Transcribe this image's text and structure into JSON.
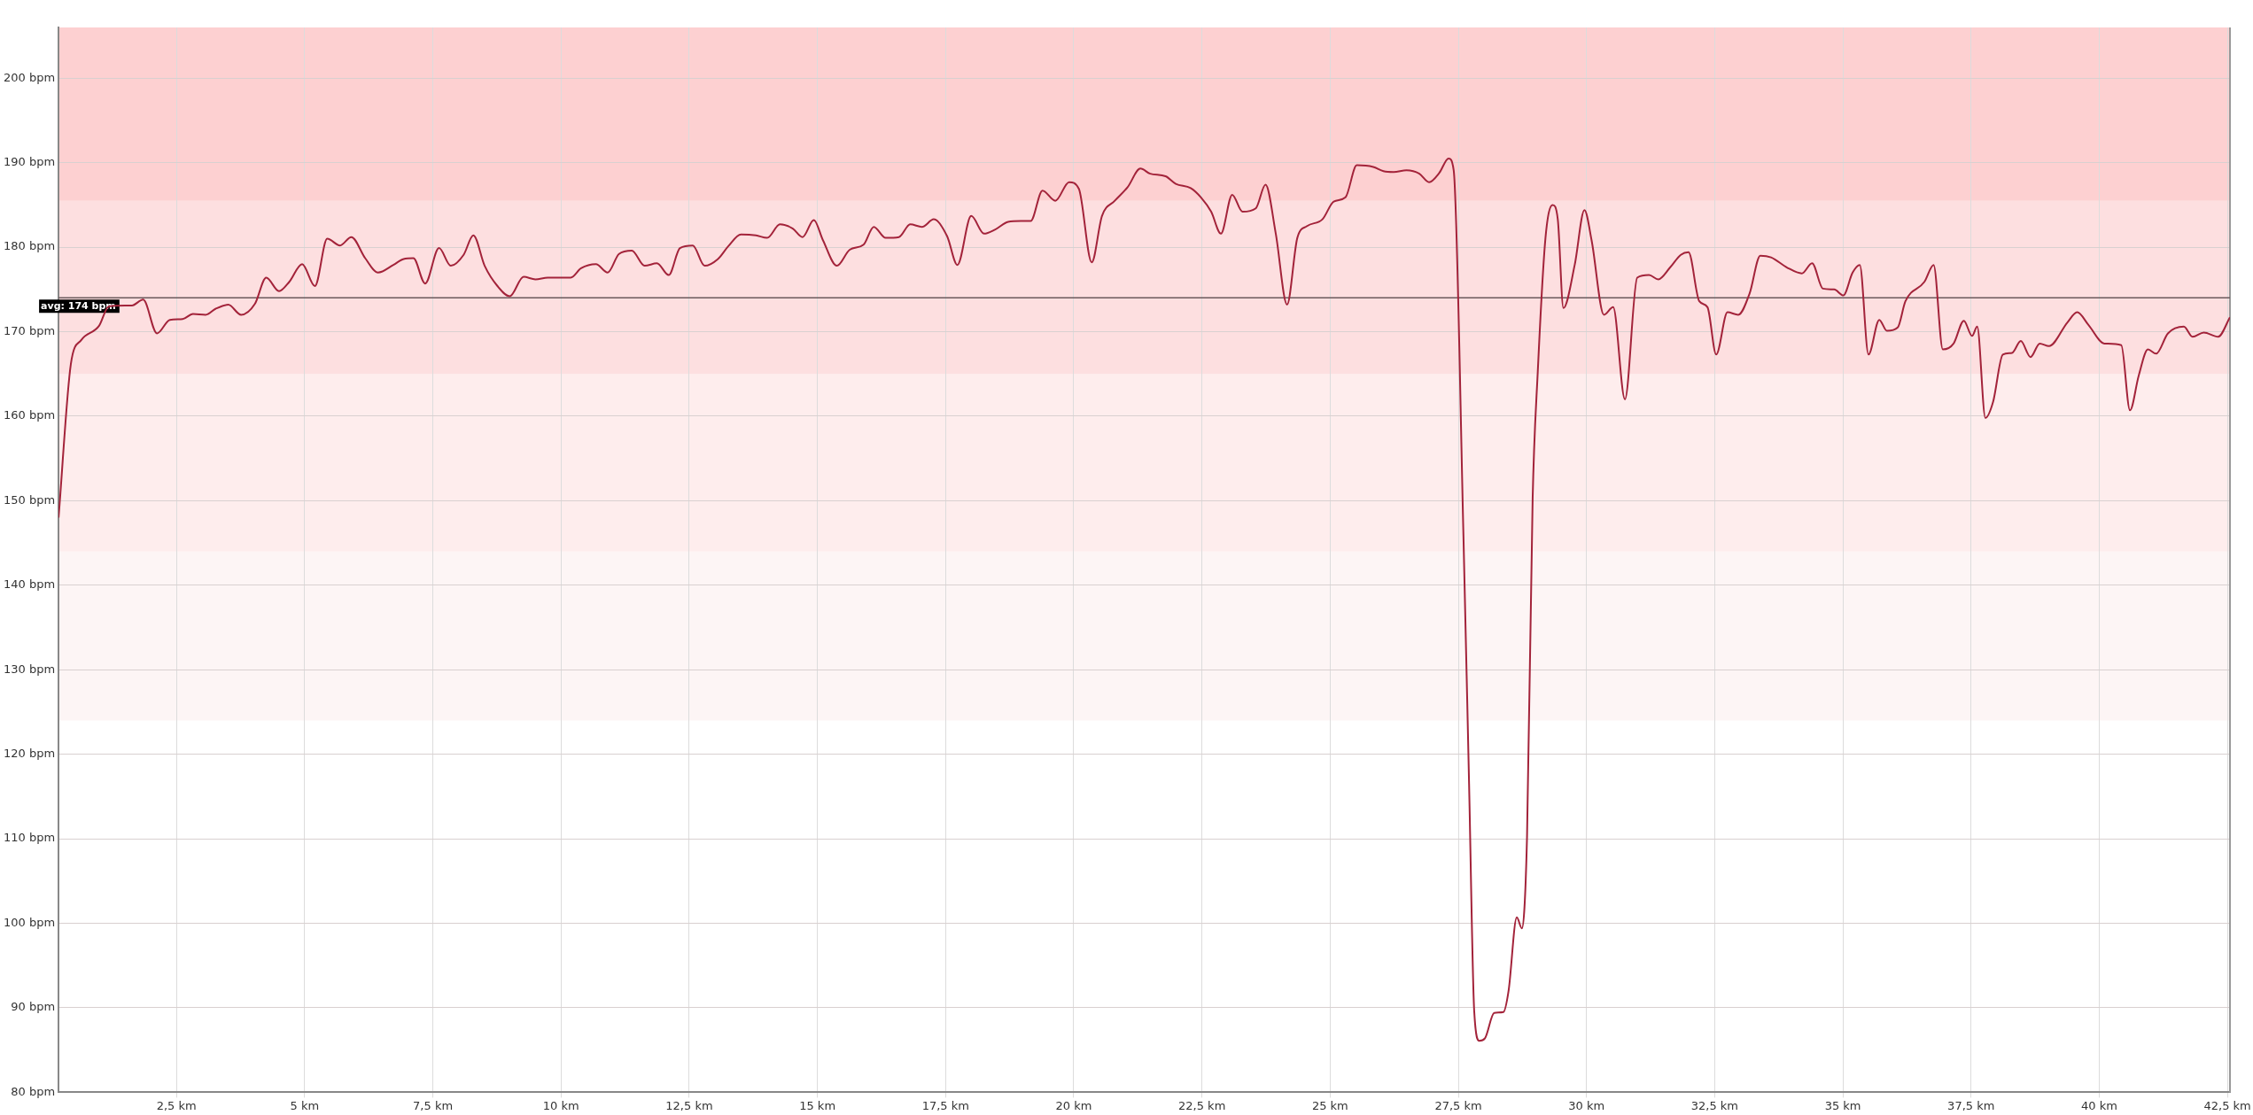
{
  "chart_data": {
    "type": "line",
    "x": [
      0.2,
      0.44,
      0.64,
      0.99,
      1.18,
      1.63,
      1.85,
      2.12,
      2.37,
      2.62,
      2.82,
      3.07,
      3.26,
      3.51,
      3.76,
      4.03,
      4.25,
      4.5,
      4.7,
      4.95,
      5.2,
      5.44,
      5.69,
      5.91,
      6.18,
      6.43,
      6.73,
      6.93,
      7.12,
      7.35,
      7.62,
      7.85,
      8.1,
      8.29,
      8.51,
      8.76,
      9.0,
      9.27,
      9.5,
      9.74,
      10.19,
      10.39,
      10.68,
      10.91,
      11.13,
      11.38,
      11.63,
      11.87,
      12.1,
      12.32,
      12.57,
      12.8,
      13.06,
      13.26,
      13.51,
      13.8,
      14.02,
      14.27,
      14.52,
      14.71,
      14.93,
      15.11,
      15.38,
      15.63,
      15.9,
      16.1,
      16.33,
      16.59,
      16.81,
      17.04,
      17.27,
      17.53,
      17.73,
      18.0,
      18.25,
      18.47,
      18.72,
      18.97,
      19.16,
      19.39,
      19.64,
      19.91,
      20.1,
      20.35,
      20.55,
      20.8,
      21.05,
      21.3,
      21.49,
      21.79,
      21.99,
      22.28,
      22.48,
      22.68,
      22.87,
      23.09,
      23.29,
      23.55,
      23.74,
      23.94,
      24.16,
      24.36,
      24.55,
      24.85,
      25.07,
      25.3,
      25.52,
      25.84,
      26.04,
      26.24,
      26.49,
      26.74,
      26.93,
      27.13,
      27.31,
      27.41,
      27.6,
      27.71,
      27.81,
      27.91,
      28.02,
      28.2,
      28.38,
      28.48,
      28.64,
      28.74,
      28.84,
      28.95,
      29.05,
      29.2,
      29.34,
      29.44,
      29.55,
      29.77,
      29.96,
      30.1,
      30.34,
      30.52,
      30.75,
      30.99,
      31.22,
      31.4,
      31.63,
      31.84,
      31.99,
      32.2,
      32.36,
      32.53,
      32.75,
      32.96,
      33.18,
      33.39,
      33.6,
      33.91,
      34.2,
      34.4,
      34.61,
      34.83,
      35.01,
      35.19,
      35.33,
      35.5,
      35.71,
      35.86,
      36.07,
      36.22,
      36.59,
      36.77,
      36.95,
      37.16,
      37.36,
      37.52,
      37.62,
      37.78,
      37.93,
      38.12,
      38.3,
      38.47,
      38.66,
      38.84,
      39.02,
      39.38,
      39.57,
      39.79,
      40.1,
      40.43,
      40.6,
      40.77,
      40.95,
      41.11,
      41.34,
      41.65,
      41.82,
      42.04,
      42.32,
      42.55
    ],
    "series": [
      {
        "color": "#a3233a",
        "values": [
          148,
          166.2,
          169.0,
          170.7,
          173.0,
          173.1,
          173.8,
          169.8,
          171.4,
          171.5,
          172.1,
          172.0,
          172.7,
          173.2,
          172.0,
          173.3,
          176.4,
          174.8,
          175.9,
          178.0,
          175.4,
          181.0,
          180.2,
          181.2,
          178.7,
          177.0,
          177.9,
          178.6,
          178.7,
          175.7,
          179.9,
          177.8,
          179.1,
          181.4,
          177.8,
          175.4,
          174.2,
          176.5,
          176.2,
          176.4,
          176.4,
          177.5,
          178.0,
          177.0,
          179.2,
          179.6,
          177.8,
          178.1,
          176.7,
          179.9,
          180.2,
          177.8,
          178.6,
          180.1,
          181.5,
          181.4,
          181.1,
          182.7,
          182.2,
          181.2,
          183.2,
          180.8,
          177.8,
          179.7,
          180.3,
          182.4,
          181.1,
          181.2,
          182.7,
          182.4,
          183.3,
          181.3,
          177.9,
          183.7,
          181.6,
          182.1,
          183.0,
          183.1,
          183.1,
          186.7,
          185.5,
          187.7,
          186.9,
          178.2,
          183.7,
          185.5,
          187.1,
          189.3,
          188.7,
          188.4,
          187.5,
          187.0,
          185.9,
          184.2,
          181.6,
          186.2,
          184.2,
          184.6,
          187.4,
          181.6,
          173.2,
          181.1,
          182.5,
          183.3,
          185.4,
          185.9,
          189.7,
          189.5,
          189.0,
          188.9,
          189.1,
          188.7,
          187.7,
          188.8,
          190.5,
          189.1,
          145.9,
          116.5,
          89.6,
          86.1,
          86.4,
          89.4,
          89.5,
          92.0,
          100.7,
          99.4,
          110.2,
          150.3,
          165.3,
          181.1,
          185.0,
          183.3,
          172.8,
          177.9,
          184.4,
          180.8,
          172.0,
          172.9,
          162.0,
          176.4,
          176.7,
          176.2,
          177.6,
          179.1,
          179.4,
          173.6,
          172.9,
          167.3,
          172.3,
          172.0,
          174.5,
          179.0,
          178.8,
          177.6,
          176.9,
          178.1,
          175.1,
          175.0,
          174.3,
          177.0,
          177.9,
          167.3,
          171.4,
          170.1,
          170.5,
          173.6,
          175.9,
          177.9,
          167.9,
          168.6,
          171.3,
          169.5,
          170.6,
          159.8,
          161.7,
          167.3,
          167.5,
          168.9,
          167.0,
          168.6,
          168.3,
          171.1,
          172.3,
          170.8,
          168.6,
          168.4,
          160.7,
          164.8,
          167.9,
          167.4,
          169.8,
          170.6,
          169.4,
          169.9,
          169.4,
          171.7
        ]
      }
    ],
    "xlim": [
      0.2,
      42.55
    ],
    "xticks": [
      {
        "value": 2.5,
        "label": "2,5 km"
      },
      {
        "value": 5,
        "label": "5 km"
      },
      {
        "value": 7.5,
        "label": "7,5 km"
      },
      {
        "value": 10,
        "label": "10 km"
      },
      {
        "value": 12.5,
        "label": "12,5 km"
      },
      {
        "value": 15,
        "label": "15 km"
      },
      {
        "value": 17.5,
        "label": "17,5 km"
      },
      {
        "value": 20,
        "label": "20 km"
      },
      {
        "value": 22.5,
        "label": "22,5 km"
      },
      {
        "value": 25,
        "label": "25 km"
      },
      {
        "value": 27.5,
        "label": "27,5 km"
      },
      {
        "value": 30,
        "label": "30 km"
      },
      {
        "value": 32.5,
        "label": "32,5 km"
      },
      {
        "value": 35,
        "label": "35 km"
      },
      {
        "value": 37.5,
        "label": "37,5 km"
      },
      {
        "value": 40,
        "label": "40 km"
      },
      {
        "value": 42.5,
        "label": "42,5 km"
      }
    ],
    "ylim": [
      80,
      206
    ],
    "yticks": [
      {
        "value": 80,
        "label": "80 bpm"
      },
      {
        "value": 90,
        "label": "90 bpm"
      },
      {
        "value": 100,
        "label": "100 bpm"
      },
      {
        "value": 110,
        "label": "110 bpm"
      },
      {
        "value": 120,
        "label": "120 bpm"
      },
      {
        "value": 130,
        "label": "130 bpm"
      },
      {
        "value": 140,
        "label": "140 bpm"
      },
      {
        "value": 150,
        "label": "150 bpm"
      },
      {
        "value": 160,
        "label": "160 bpm"
      },
      {
        "value": 170,
        "label": "170 bpm"
      },
      {
        "value": 180,
        "label": "180 bpm"
      },
      {
        "value": 190,
        "label": "190 bpm"
      },
      {
        "value": 200,
        "label": "200 bpm"
      }
    ],
    "bands": [
      {
        "axis": "y",
        "from": 124,
        "to": 144,
        "color": "#fdf5f5"
      },
      {
        "axis": "y",
        "from": 144,
        "to": 165,
        "color": "#feeded"
      },
      {
        "axis": "y",
        "from": 165,
        "to": 185.5,
        "color": "#fddfe0"
      },
      {
        "axis": "y",
        "from": 185.5,
        "to": 206,
        "color": "#fdd0d1"
      }
    ],
    "ref_lines": [
      {
        "axis": "y",
        "value": 174,
        "label": "avg: 174 bpm",
        "color": "#6b5a5c"
      }
    ],
    "grid": true,
    "legend": false,
    "marker": "none",
    "line_style": "solid"
  }
}
